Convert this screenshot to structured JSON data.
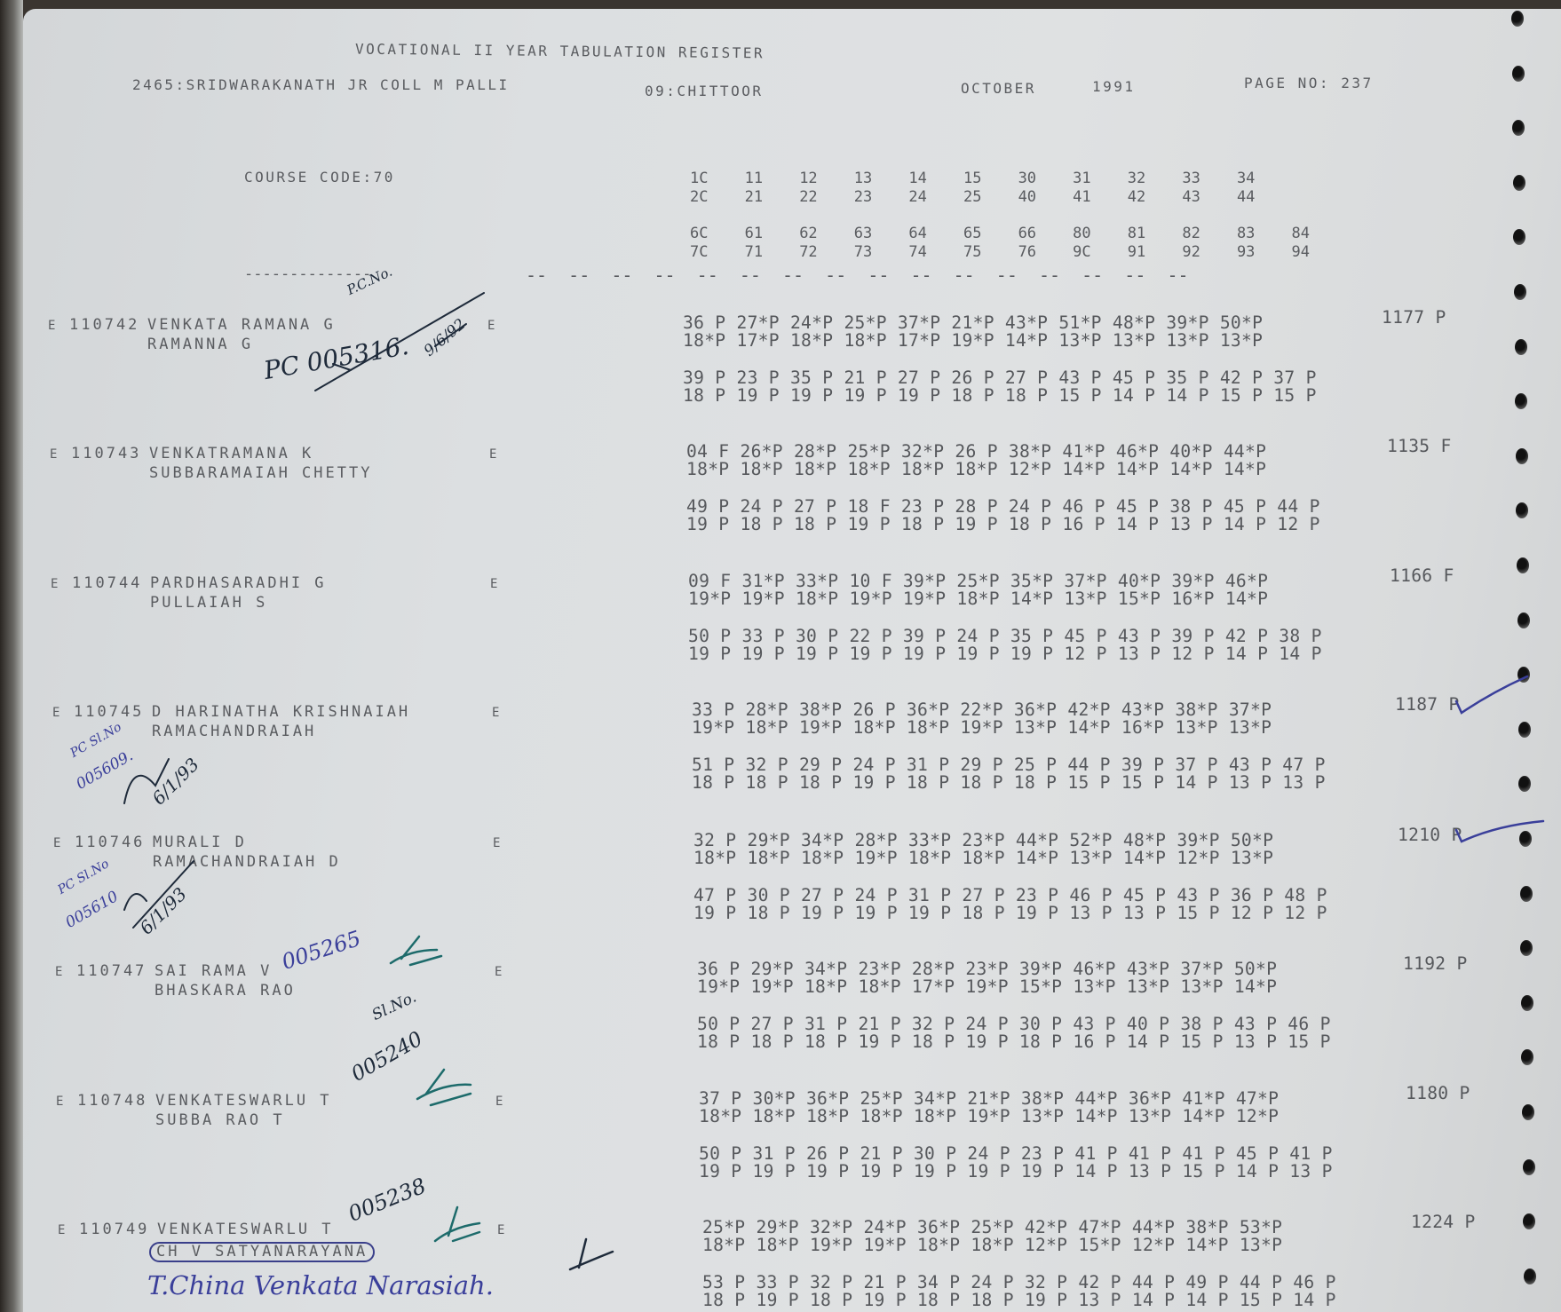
{
  "header": {
    "title": "VOCATIONAL II YEAR TABULATION REGISTER",
    "college": "2465:SRIDWARAKANATH JR COLL M PALLI",
    "district": "09:CHITTOOR",
    "month": "OCTOBER",
    "year": "1991",
    "page": "PAGE NO: 237",
    "course_code": "COURSE CODE:70"
  },
  "column_codes": [
    [
      "1C",
      "11",
      "12",
      "13",
      "14",
      "15",
      "30",
      "31",
      "32",
      "33",
      "34"
    ],
    [
      "2C",
      "21",
      "22",
      "23",
      "24",
      "25",
      "40",
      "41",
      "42",
      "43",
      "44"
    ],
    [
      "6C",
      "61",
      "62",
      "63",
      "64",
      "65",
      "66",
      "80",
      "81",
      "82",
      "83",
      "84"
    ],
    [
      "7C",
      "71",
      "72",
      "73",
      "74",
      "75",
      "76",
      "9C",
      "91",
      "92",
      "93",
      "94"
    ]
  ],
  "separator": {
    "name_dashes": "--------------",
    "col_dashes": "--  --  --  --  --  --  --  --  --  --  --  --  --  --  --  --"
  },
  "students": [
    {
      "flag": "E",
      "roll": "110742",
      "name": "VENKATA RAMANA G",
      "father": "RAMANNA G",
      "medium": "E",
      "marks": [
        "36 P 27*P 24*P 25*P 37*P 21*P 43*P 51*P 48*P 39*P 50*P",
        "18*P 17*P 18*P 18*P 17*P 19*P 14*P 13*P 13*P 13*P 13*P",
        "39 P 23 P 35 P 21 P 27 P 26 P 27 P 43 P 45 P 35 P 42 P 37 P",
        "18 P 19 P 19 P 19 P 19 P 18 P 18 P 15 P 14 P 14 P 15 P 15 P"
      ],
      "total": "1177 P"
    },
    {
      "flag": "E",
      "roll": "110743",
      "name": "VENKATRAMANA K",
      "father": "SUBBARAMAIAH CHETTY",
      "medium": "E",
      "marks": [
        "04 F 26*P 28*P 25*P 32*P 26 P 38*P 41*P 46*P 40*P 44*P",
        "18*P 18*P 18*P 18*P 18*P 18*P 12*P 14*P 14*P 14*P 14*P",
        "49 P 24 P 27 P 18 F 23 P 28 P 24 P 46 P 45 P 38 P 45 P 44 P",
        "19 P 18 P 18 P 19 P 18 P 19 P 18 P 16 P 14 P 13 P 14 P 12 P"
      ],
      "total": "1135 F"
    },
    {
      "flag": "E",
      "roll": "110744",
      "name": "PARDHASARADHI G",
      "father": "PULLAIAH S",
      "medium": "E",
      "marks": [
        "09 F 31*P 33*P 10 F 39*P 25*P 35*P 37*P 40*P 39*P 46*P",
        "19*P 19*P 18*P 19*P 19*P 18*P 14*P 13*P 15*P 16*P 14*P",
        "50 P 33 P 30 P 22 P 39 P 24 P 35 P 45 P 43 P 39 P 42 P 38 P",
        "19 P 19 P 19 P 19 P 19 P 19 P 19 P 12 P 13 P 12 P 14 P 14 P"
      ],
      "total": "1166 F"
    },
    {
      "flag": "E",
      "roll": "110745",
      "name": "D HARINATHA KRISHNAIAH",
      "father": "RAMACHANDRAIAH",
      "medium": "E",
      "marks": [
        "33 P 28*P 38*P 26 P 36*P 22*P 36*P 42*P 43*P 38*P 37*P",
        "19*P 18*P 19*P 18*P 18*P 19*P 13*P 14*P 16*P 13*P 13*P",
        "51 P 32 P 29 P 24 P 31 P 29 P 25 P 44 P 39 P 37 P 43 P 47 P",
        "18 P 18 P 18 P 19 P 18 P 18 P 18 P 15 P 15 P 14 P 13 P 13 P"
      ],
      "total": "1187 P"
    },
    {
      "flag": "E",
      "roll": "110746",
      "name": "MURALI D",
      "father": "RAMACHANDRAIAH D",
      "medium": "E",
      "marks": [
        "32 P 29*P 34*P 28*P 33*P 23*P 44*P 52*P 48*P 39*P 50*P",
        "18*P 18*P 18*P 19*P 18*P 18*P 14*P 13*P 14*P 12*P 13*P",
        "47 P 30 P 27 P 24 P 31 P 27 P 23 P 46 P 45 P 43 P 36 P 48 P",
        "19 P 18 P 19 P 19 P 19 P 18 P 19 P 13 P 13 P 15 P 12 P 12 P"
      ],
      "total": "1210 P"
    },
    {
      "flag": "E",
      "roll": "110747",
      "name": "SAI RAMA V",
      "father": "BHASKARA RAO",
      "medium": "E",
      "marks": [
        "36 P 29*P 34*P 23*P 28*P 23*P 39*P 46*P 43*P 37*P 50*P",
        "19*P 19*P 18*P 18*P 17*P 19*P 15*P 13*P 13*P 13*P 14*P",
        "50 P 27 P 31 P 21 P 32 P 24 P 30 P 43 P 40 P 38 P 43 P 46 P",
        "18 P 18 P 18 P 19 P 18 P 19 P 18 P 16 P 14 P 15 P 13 P 15 P"
      ],
      "total": "1192 P"
    },
    {
      "flag": "E",
      "roll": "110748",
      "name": "VENKATESWARLU T",
      "father": "SUBBA RAO T",
      "medium": "E",
      "marks": [
        "37 P 30*P 36*P 25*P 34*P 21*P 38*P 44*P 36*P 41*P 47*P",
        "18*P 18*P 18*P 18*P 18*P 19*P 13*P 14*P 13*P 14*P 12*P",
        "50 P 31 P 26 P 21 P 30 P 24 P 23 P 41 P 41 P 41 P 45 P 41 P",
        "19 P 19 P 19 P 19 P 19 P 19 P 19 P 14 P 13 P 15 P 14 P 13 P"
      ],
      "total": "1180 P"
    },
    {
      "flag": "E",
      "roll": "110749",
      "name": "VENKATESWARLU T",
      "father": "CH V SATYANARAYANA",
      "medium": "E",
      "marks": [
        "25*P 29*P 32*P 24*P 36*P 25*P 42*P 47*P 44*P 38*P 53*P",
        "18*P 18*P 19*P 19*P 18*P 18*P 12*P 15*P 12*P 14*P 13*P",
        "53 P 33 P 32 P 21 P 34 P 24 P 32 P 42 P 44 P 49 P 44 P 46 P",
        "18 P 19 P 18 P 19 P 18 P 18 P 19 P 13 P 14 P 14 P 15 P 14 P"
      ],
      "total": "1224 P"
    }
  ],
  "annotations": [
    "P.C.No.",
    "PC 005316.",
    "9/6/92",
    "PC Sl.No",
    "005609.",
    "6/1/93",
    "PC Sl.No",
    "005610",
    "6/1/93",
    "005265",
    "Sl.No.",
    "005240",
    "005238",
    "T.China Venkata Narasiah."
  ],
  "colors": {
    "ink": "#5a5c60",
    "blue_pen": "#3a3f9a",
    "black_pen": "#1e2a3a",
    "green_pen": "#1d6b6b"
  }
}
